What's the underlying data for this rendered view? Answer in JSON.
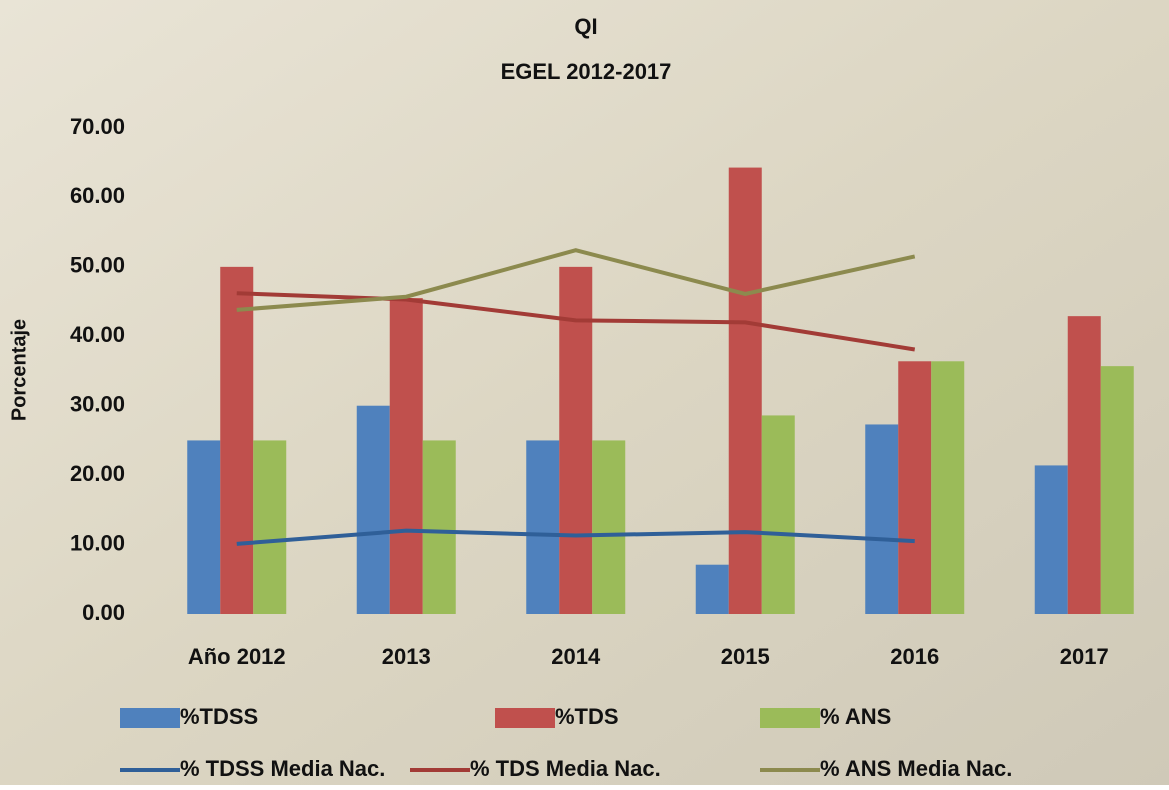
{
  "chart_data": {
    "type": "bar-line",
    "title": "QI",
    "subtitle": "EGEL 2012-2017",
    "y_label": "Porcentaje",
    "categories": [
      "Año 2012",
      "2013",
      "2014",
      "2015",
      "2016",
      "2017"
    ],
    "series": [
      {
        "name": "%TDSS",
        "kind": "bar",
        "color": "#4f81bd",
        "values": [
          25,
          30,
          25,
          7.1,
          27.3,
          21.4
        ]
      },
      {
        "name": "%TDS",
        "kind": "bar",
        "color": "#c0504d",
        "values": [
          50,
          45.5,
          50,
          64.3,
          36.4,
          42.9
        ]
      },
      {
        "name": "% ANS",
        "kind": "bar",
        "color": "#9bbb59",
        "values": [
          25,
          25,
          25,
          28.6,
          36.4,
          35.7
        ]
      },
      {
        "name": "% TDSS Media Nac.",
        "kind": "line",
        "color": "#2f5f98",
        "values": [
          10.1,
          12.0,
          11.3,
          11.8,
          10.5,
          null
        ]
      },
      {
        "name": "% TDS Media Nac.",
        "kind": "line",
        "color": "#a23b36",
        "values": [
          46.2,
          45.3,
          42.3,
          42.0,
          38.1,
          null
        ]
      },
      {
        "name": "% ANS Media Nac.",
        "kind": "line",
        "color": "#8c8a4e",
        "values": [
          43.8,
          45.7,
          52.4,
          46.1,
          51.5,
          null
        ]
      }
    ],
    "ylim": [
      0,
      70
    ],
    "yticks": [
      {
        "value": 0,
        "label": "0.00"
      },
      {
        "value": 10,
        "label": "10.00"
      },
      {
        "value": 20,
        "label": "20.00"
      },
      {
        "value": 30,
        "label": "30.00"
      },
      {
        "value": 40,
        "label": "40.00"
      },
      {
        "value": 50,
        "label": "50.00"
      },
      {
        "value": 60,
        "label": "60.00"
      },
      {
        "value": 70,
        "label": "70.00"
      }
    ],
    "grid": false
  }
}
